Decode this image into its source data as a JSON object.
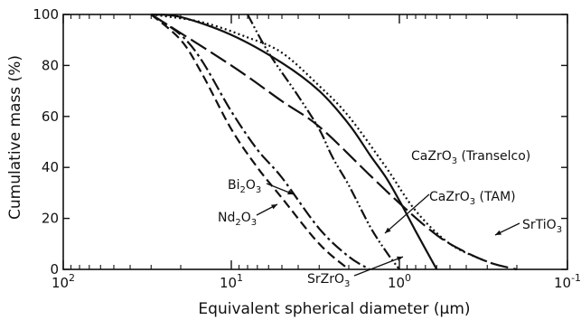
{
  "chart_data": {
    "type": "line",
    "title": "",
    "xlabel": "Equivalent spherical diameter (μm)",
    "ylabel": "Cumulative mass (%)",
    "xscale": "log",
    "xreversed": true,
    "xlim": [
      100,
      0.1
    ],
    "ylim": [
      0,
      100
    ],
    "x_ticks": [
      {
        "value": 100,
        "base": "10",
        "exp": "2"
      },
      {
        "value": 10,
        "base": "10",
        "exp": "1"
      },
      {
        "value": 1,
        "base": "10",
        "exp": "0"
      },
      {
        "value": 0.1,
        "base": "10",
        "exp": "-1"
      }
    ],
    "y_ticks": [
      "0",
      "20",
      "40",
      "60",
      "80",
      "100"
    ],
    "grid": false,
    "legend": "none",
    "series": [
      {
        "label_parts": [
          {
            "t": "CaZrO"
          },
          {
            "t": "3",
            "sub": true
          },
          {
            "t": " (Transelco)"
          }
        ],
        "dash": "solid",
        "x": [
          30,
          20,
          10,
          5,
          3,
          2,
          1.5,
          1.2,
          1,
          0.8,
          0.6
        ],
        "y": [
          100,
          99,
          92,
          81,
          70,
          57,
          45,
          36,
          27,
          15,
          0
        ]
      },
      {
        "label_parts": [
          {
            "t": "CaZrO"
          },
          {
            "t": "3",
            "sub": true
          },
          {
            "t": " (TAM)"
          }
        ],
        "dash": "dotted",
        "x": [
          30,
          15,
          8,
          5,
          3,
          2,
          1.2,
          0.8,
          0.5,
          0.3
        ],
        "y": [
          100,
          97,
          91,
          85,
          72,
          60,
          40,
          23,
          10,
          3
        ]
      },
      {
        "label_parts": [
          {
            "t": "SrTiO"
          },
          {
            "t": "3",
            "sub": true
          }
        ],
        "dash": "longdash",
        "x": [
          30,
          10,
          5,
          3,
          1.5,
          1,
          0.7,
          0.5,
          0.3,
          0.2
        ],
        "y": [
          100,
          80,
          66,
          56,
          37,
          26,
          17,
          10,
          3,
          0
        ]
      },
      {
        "label_parts": [
          {
            "t": "SrZrO"
          },
          {
            "t": "3",
            "sub": true
          }
        ],
        "dash": "dashdotdot",
        "x": [
          8,
          6,
          4,
          3,
          2.5,
          2,
          1.5,
          1.2,
          1
        ],
        "y": [
          100,
          85,
          68,
          55,
          44,
          33,
          17,
          7,
          0
        ]
      },
      {
        "label_parts": [
          {
            "t": "Bi"
          },
          {
            "t": "2",
            "sub": true
          },
          {
            "t": "O"
          },
          {
            "t": "3",
            "sub": true
          }
        ],
        "dash": "dashdot",
        "x": [
          30,
          20,
          15,
          10,
          7,
          5,
          3,
          2,
          1.5
        ],
        "y": [
          100,
          92,
          82,
          62,
          47,
          36,
          16,
          5,
          0
        ]
      },
      {
        "label_parts": [
          {
            "t": "Nd"
          },
          {
            "t": "2",
            "sub": true
          },
          {
            "t": "O"
          },
          {
            "t": "3",
            "sub": true
          }
        ],
        "dash": "dashed",
        "x": [
          30,
          20,
          15,
          10,
          7,
          5,
          3,
          2
        ],
        "y": [
          100,
          90,
          77,
          55,
          40,
          28,
          10,
          0
        ]
      }
    ]
  }
}
